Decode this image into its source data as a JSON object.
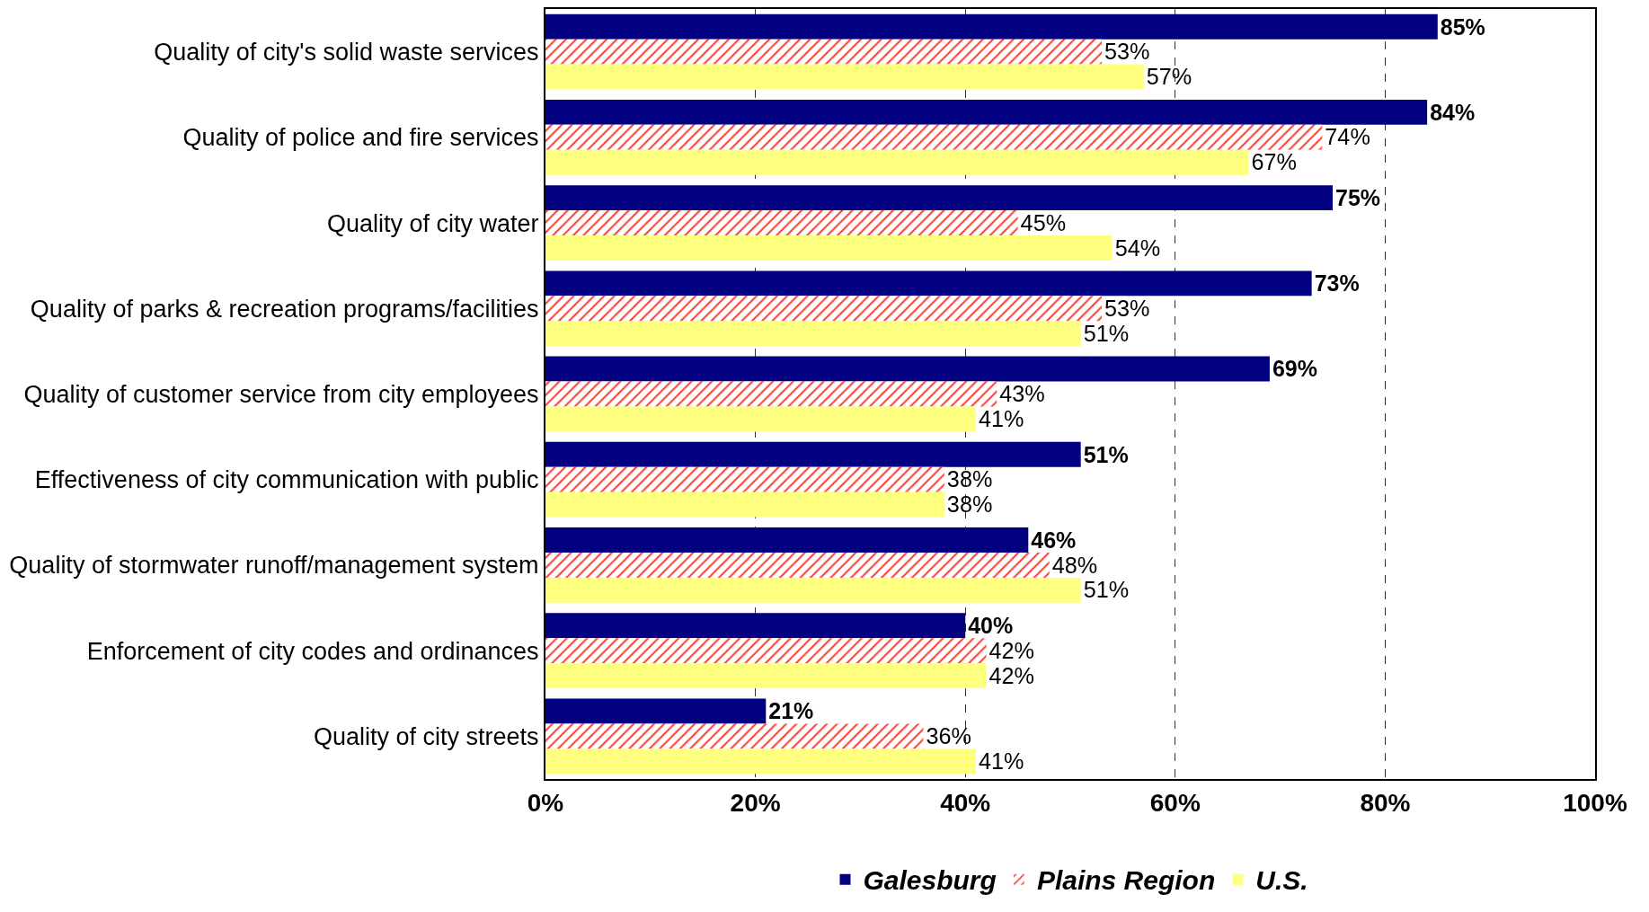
{
  "chart_data": {
    "type": "bar",
    "orientation": "horizontal",
    "categories": [
      "Quality of city's solid waste services",
      "Quality of police and fire services",
      "Quality of city water",
      "Quality of parks & recreation programs/facilities",
      "Quality of customer service from city employees",
      "Effectiveness of city communication with public",
      "Quality of stormwater runoff/management system",
      "Enforcement of city codes and ordinances",
      "Quality of city streets"
    ],
    "series": [
      {
        "name": "Galesburg",
        "color": "#000080",
        "values": [
          85,
          84,
          75,
          73,
          69,
          51,
          46,
          40,
          21
        ],
        "value_labels": [
          "85%",
          "84%",
          "75%",
          "73%",
          "69%",
          "51%",
          "46%",
          "40%",
          "21%"
        ]
      },
      {
        "name": "Plains Region",
        "color": "#ff3b2f",
        "values": [
          53,
          74,
          45,
          53,
          43,
          38,
          48,
          42,
          36
        ],
        "value_labels": [
          "53%",
          "74%",
          "45%",
          "53%",
          "43%",
          "38%",
          "48%",
          "42%",
          "36%"
        ]
      },
      {
        "name": "U.S.",
        "color": "#ffff80",
        "values": [
          57,
          67,
          54,
          51,
          41,
          38,
          51,
          42,
          41
        ],
        "value_labels": [
          "57%",
          "67%",
          "54%",
          "51%",
          "41%",
          "38%",
          "51%",
          "42%",
          "41%"
        ]
      }
    ],
    "xlim": [
      0,
      100
    ],
    "xticks": [
      {
        "value": 0,
        "label": "0%"
      },
      {
        "value": 20,
        "label": "20%"
      },
      {
        "value": 40,
        "label": "40%"
      },
      {
        "value": 60,
        "label": "60%"
      },
      {
        "value": 80,
        "label": "80%"
      },
      {
        "value": 100,
        "label": "100%"
      }
    ],
    "grid": "x",
    "legend": "bottom"
  }
}
